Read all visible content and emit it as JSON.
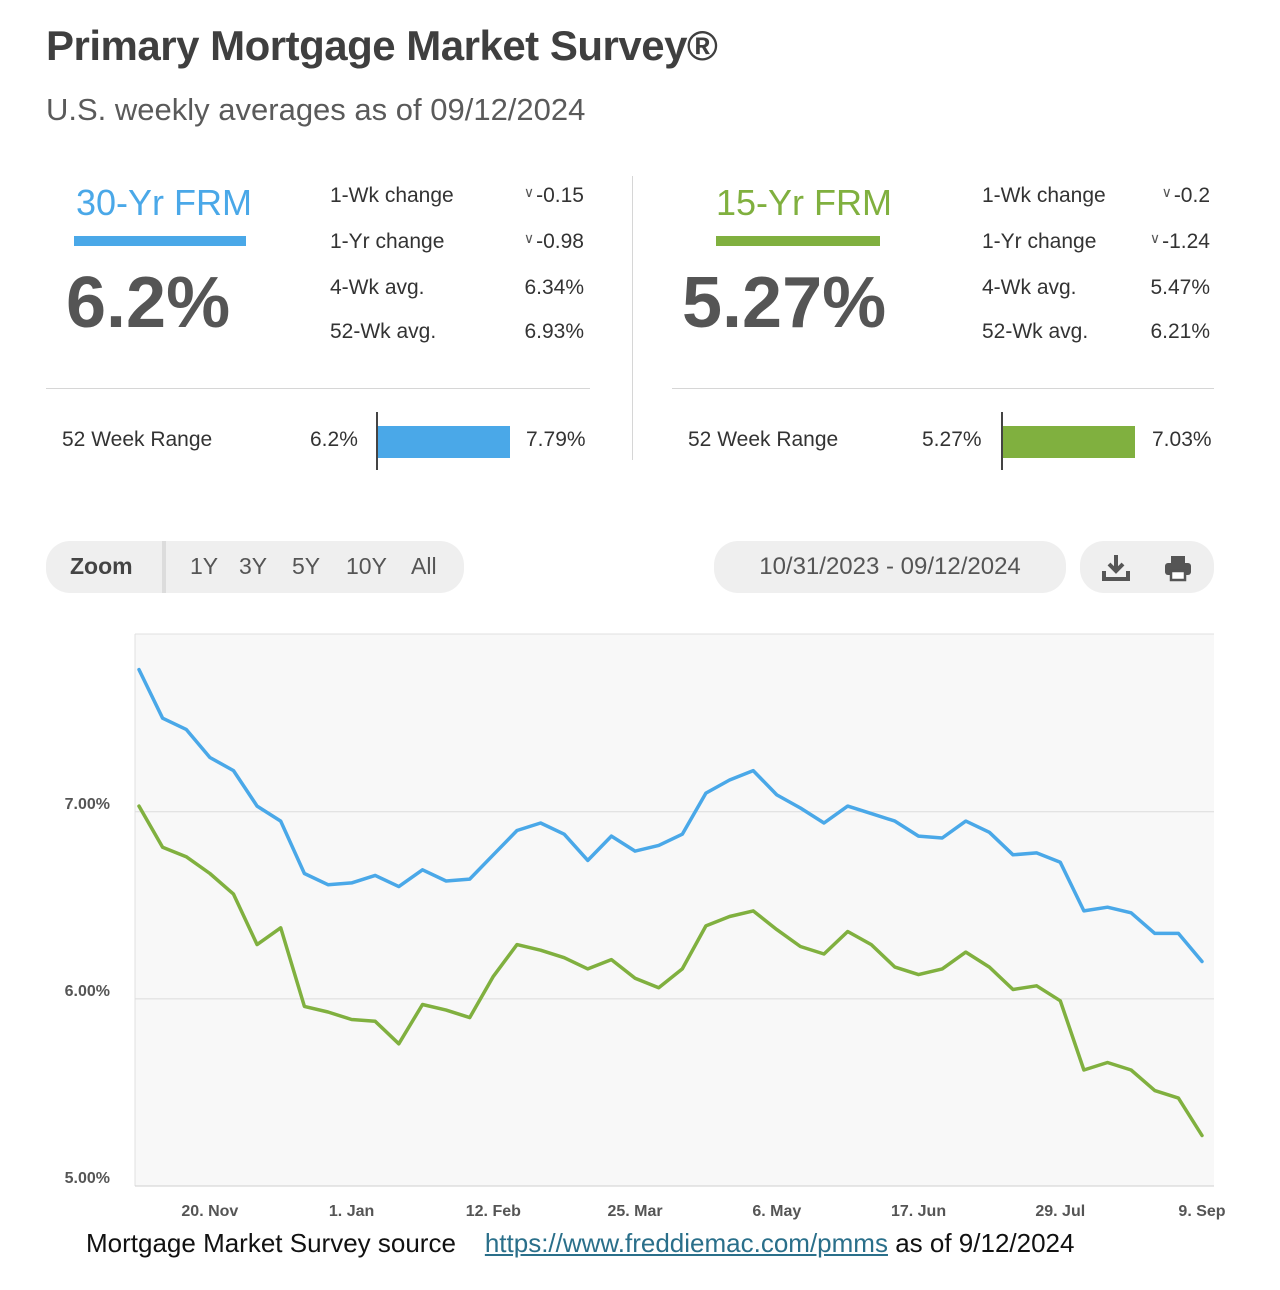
{
  "header": {
    "title": "Primary Mortgage Market Survey®",
    "subtitle": "U.S. weekly averages as of 09/12/2024"
  },
  "rates": [
    {
      "name": "30-Yr FRM",
      "color": "#4aa8e8",
      "rate": "6.2%",
      "stats": [
        {
          "label": "1-Wk change",
          "value": "-0.15",
          "chevron": true
        },
        {
          "label": "1-Yr change",
          "value": "-0.98",
          "chevron": true
        },
        {
          "label": "4-Wk avg.",
          "value": "6.34%",
          "chevron": false
        },
        {
          "label": "52-Wk avg.",
          "value": "6.93%",
          "chevron": false
        }
      ],
      "range_label": "52 Week Range",
      "range_low": "6.2%",
      "range_high": "7.79%"
    },
    {
      "name": "15-Yr FRM",
      "color": "#80b03f",
      "rate": "5.27%",
      "stats": [
        {
          "label": "1-Wk change",
          "value": "-0.2",
          "chevron": true
        },
        {
          "label": "1-Yr change",
          "value": "-1.24",
          "chevron": true
        },
        {
          "label": "4-Wk avg.",
          "value": "5.47%",
          "chevron": false
        },
        {
          "label": "52-Wk avg.",
          "value": "6.21%",
          "chevron": false
        }
      ],
      "range_label": "52 Week Range",
      "range_low": "5.27%",
      "range_high": "7.03%"
    }
  ],
  "controls": {
    "zoom_label": "Zoom",
    "zoom_options": [
      "1Y",
      "3Y",
      "5Y",
      "10Y",
      "All"
    ],
    "date_range": "10/31/2023 - 09/12/2024",
    "download_icon": "download-icon",
    "print_icon": "print-icon"
  },
  "chart_data": {
    "type": "line",
    "title": "",
    "xlabel": "",
    "ylabel": "",
    "ylim": [
      5.0,
      7.95
    ],
    "yticks": [
      5.0,
      6.0,
      7.0
    ],
    "ytick_labels": [
      "5.00%",
      "6.00%",
      "7.00%"
    ],
    "xtick_labels": [
      "20. Nov",
      "1. Jan",
      "12. Feb",
      "25. Mar",
      "6. May",
      "17. Jun",
      "29. Jul",
      "9. Sep"
    ],
    "xtick_index": [
      3,
      9,
      15,
      21,
      27,
      33,
      39,
      45
    ],
    "x": [
      "11/02/2023",
      "11/09/2023",
      "11/16/2023",
      "11/22/2023",
      "11/30/2023",
      "12/07/2023",
      "12/14/2023",
      "12/21/2023",
      "12/28/2023",
      "01/04/2024",
      "01/11/2024",
      "01/18/2024",
      "01/25/2024",
      "02/01/2024",
      "02/08/2024",
      "02/15/2024",
      "02/22/2024",
      "02/29/2024",
      "03/07/2024",
      "03/14/2024",
      "03/21/2024",
      "03/28/2024",
      "04/04/2024",
      "04/11/2024",
      "04/18/2024",
      "04/25/2024",
      "05/02/2024",
      "05/09/2024",
      "05/16/2024",
      "05/23/2024",
      "05/30/2024",
      "06/06/2024",
      "06/13/2024",
      "06/20/2024",
      "06/27/2024",
      "07/03/2024",
      "07/11/2024",
      "07/18/2024",
      "07/25/2024",
      "08/01/2024",
      "08/08/2024",
      "08/15/2024",
      "08/22/2024",
      "08/29/2024",
      "09/05/2024",
      "09/12/2024"
    ],
    "series": [
      {
        "name": "30-Yr FRM",
        "color": "#4aa8e8",
        "values": [
          7.76,
          7.5,
          7.44,
          7.29,
          7.22,
          7.03,
          6.95,
          6.67,
          6.61,
          6.62,
          6.66,
          6.6,
          6.69,
          6.63,
          6.64,
          6.77,
          6.9,
          6.94,
          6.88,
          6.74,
          6.87,
          6.79,
          6.82,
          6.88,
          7.1,
          7.17,
          7.22,
          7.09,
          7.02,
          6.94,
          7.03,
          6.99,
          6.95,
          6.87,
          6.86,
          6.95,
          6.89,
          6.77,
          6.78,
          6.73,
          6.47,
          6.49,
          6.46,
          6.35,
          6.35,
          6.2
        ]
      },
      {
        "name": "15-Yr FRM",
        "color": "#80b03f",
        "values": [
          7.03,
          6.81,
          6.76,
          6.67,
          6.56,
          6.29,
          6.38,
          5.96,
          5.93,
          5.89,
          5.88,
          5.76,
          5.97,
          5.94,
          5.9,
          6.12,
          6.29,
          6.26,
          6.22,
          6.16,
          6.21,
          6.11,
          6.06,
          6.16,
          6.39,
          6.44,
          6.47,
          6.37,
          6.28,
          6.24,
          6.36,
          6.29,
          6.17,
          6.13,
          6.16,
          6.25,
          6.17,
          6.05,
          6.07,
          5.99,
          5.62,
          5.66,
          5.62,
          5.51,
          5.47,
          5.27
        ]
      }
    ]
  },
  "footer": {
    "text_before": "Mortgage Market Survey source",
    "link": "https://www.freddiemac.com/pmms",
    "text_after": "as of 9/12/2024"
  }
}
